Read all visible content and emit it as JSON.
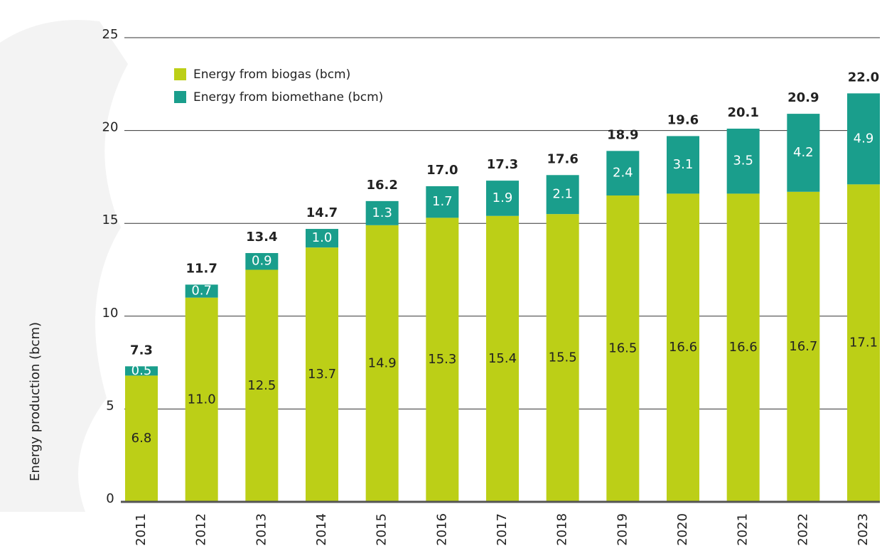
{
  "chart_data": {
    "type": "stacked-bar",
    "y_axis_label": "Energy production (bcm)",
    "categories": [
      "2011",
      "2012",
      "2013",
      "2014",
      "2015",
      "2016",
      "2017",
      "2018",
      "2019",
      "2020",
      "2021",
      "2022",
      "2023"
    ],
    "series": [
      {
        "name": "Energy from biogas (bcm)",
        "color": "#bccf17",
        "values": [
          6.8,
          11.0,
          12.5,
          13.7,
          14.9,
          15.3,
          15.4,
          15.5,
          16.5,
          16.6,
          16.6,
          16.7,
          17.1
        ],
        "value_labels": [
          "6.8",
          "11.0",
          "12.5",
          "13.7",
          "14.9",
          "15.3",
          "15.4",
          "15.5",
          "16.5",
          "16.6",
          "16.6",
          "16.7",
          "17.1"
        ]
      },
      {
        "name": "Energy from biomethane (bcm)",
        "color": "#1a9e8c",
        "values": [
          0.5,
          0.7,
          0.9,
          1.0,
          1.3,
          1.7,
          1.9,
          2.1,
          2.4,
          3.1,
          3.5,
          4.2,
          4.9
        ],
        "value_labels": [
          "0.5",
          "0.7",
          "0.9",
          "1.0",
          "1.3",
          "1.7",
          "1.9",
          "2.1",
          "2.4",
          "3.1",
          "3.5",
          "4.2",
          "4.9"
        ]
      }
    ],
    "totals": [
      7.3,
      11.7,
      13.4,
      14.7,
      16.2,
      17.0,
      17.3,
      17.6,
      18.9,
      19.6,
      20.1,
      20.9,
      22.0
    ],
    "total_labels": [
      "7.3",
      "11.7",
      "13.4",
      "14.7",
      "16.2",
      "17.0",
      "17.3",
      "17.6",
      "18.9",
      "19.6",
      "20.1",
      "20.9",
      "22.0"
    ],
    "ylim": [
      0,
      25
    ],
    "yticks": [
      0,
      5,
      10,
      15,
      20,
      25
    ],
    "grid": true
  }
}
